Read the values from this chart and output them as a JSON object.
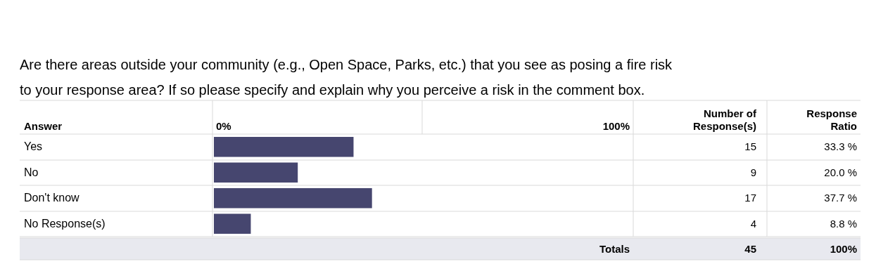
{
  "chart_data": {
    "type": "bar",
    "orientation": "horizontal",
    "title": "Are there areas outside your community (e.g., Open Space, Parks, etc.) that you see as posing a fire risk to your response area? If so please specify and explain why you perceive a risk in the comment box.",
    "categories": [
      "Yes",
      "No",
      "Don't know",
      "No Response(s)"
    ],
    "values": [
      33.3,
      20.0,
      37.7,
      8.8
    ],
    "value_labels": [
      "33.3 %",
      "20.0 %",
      "37.7 %",
      "8.8 %"
    ],
    "color": "#46466f",
    "xlim": [
      0,
      100
    ],
    "annotations": [
      "Answer",
      "Number of Response(s)",
      "Response Ratio",
      "15",
      "9",
      "17",
      "4",
      "Totals",
      "45",
      "100%",
      "0%",
      "100%"
    ]
  }
}
